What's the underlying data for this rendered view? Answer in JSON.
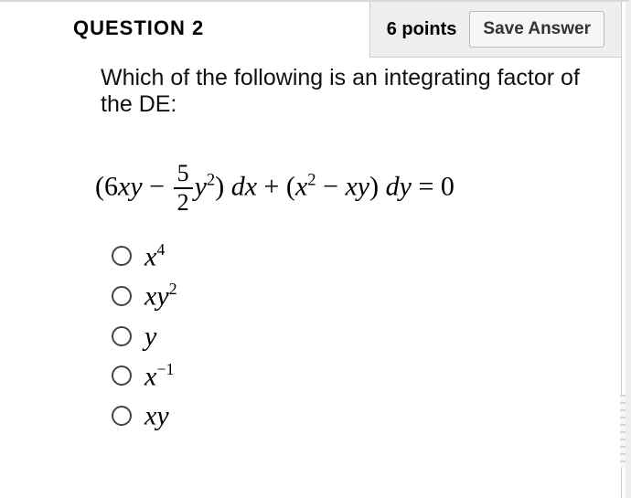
{
  "header": {
    "title": "QUESTION 2",
    "points": "6 points",
    "save_button": "Save Answer"
  },
  "question": {
    "stem": "Which of the following is an integrating factor of the DE:",
    "equation": {
      "pre": "(6",
      "xy": "xy",
      "minus1": " − ",
      "frac_num": "5",
      "frac_den": "2",
      "ysq": "y",
      "ysq_exp": "2",
      "close1": ") ",
      "dx": "dx",
      "plus": " + (",
      "x": "x",
      "x_exp": "2",
      "minus2": " − ",
      "xy2": "xy",
      "close2": ") ",
      "dy": "dy",
      "eq": " = 0"
    }
  },
  "options": [
    {
      "base": "x",
      "exp": "4"
    },
    {
      "base": "xy",
      "exp": "2"
    },
    {
      "base": "y",
      "exp": ""
    },
    {
      "base": "x",
      "exp": "−1"
    },
    {
      "base": "xy",
      "exp": ""
    }
  ]
}
